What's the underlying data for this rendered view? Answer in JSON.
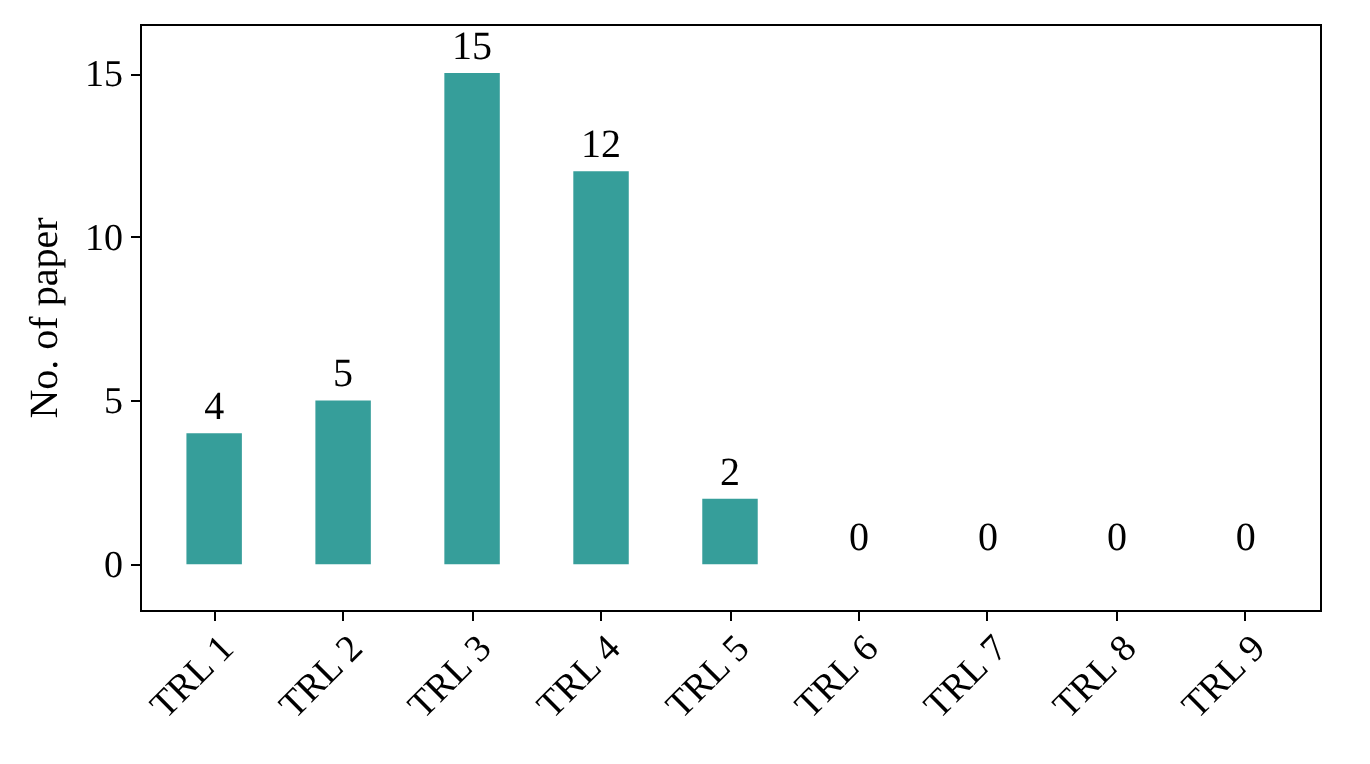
{
  "chart_data": {
    "type": "bar",
    "ylabel": "No. of paper",
    "categories": [
      "TRL 1",
      "TRL 2",
      "TRL 3",
      "TRL 4",
      "TRL 5",
      "TRL 6",
      "TRL 7",
      "TRL 8",
      "TRL 9"
    ],
    "values": [
      4,
      5,
      15,
      12,
      2,
      0,
      0,
      0,
      0
    ],
    "color": "#369e9a",
    "ylim": [
      -1.4,
      16.5
    ],
    "yticks": [
      0,
      5,
      10,
      15
    ],
    "grid": false,
    "data_labels": true
  }
}
